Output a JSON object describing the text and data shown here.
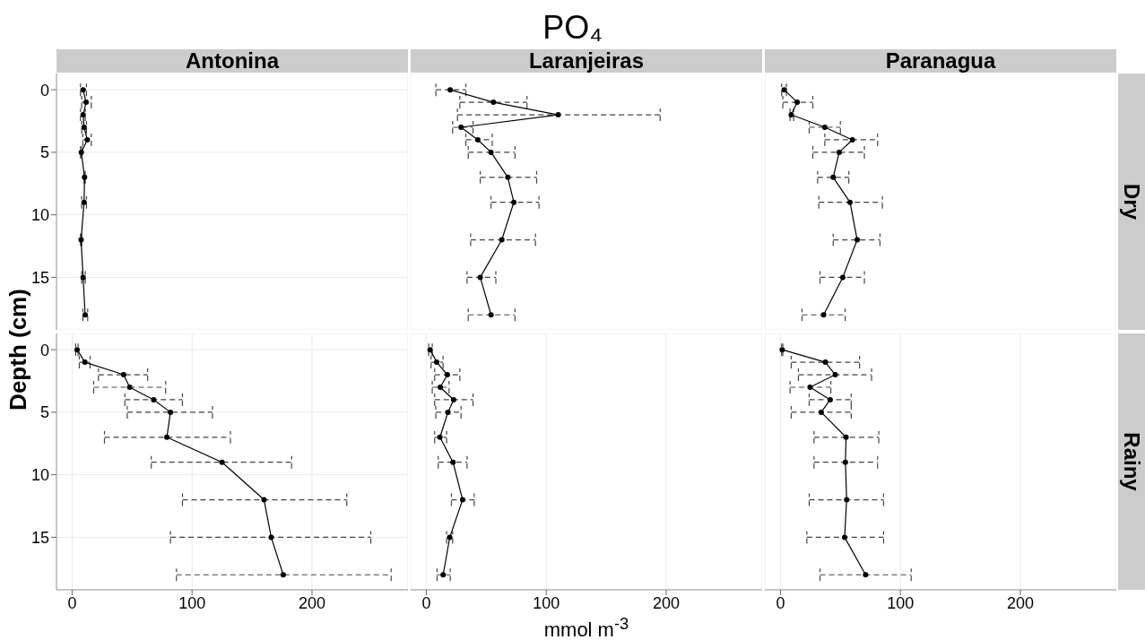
{
  "chart_data": [
    {
      "type": "line",
      "subtitle": "Antonina",
      "ylabel": "Depth (cm)",
      "series": [
        {
          "color": "#000000",
          "x": [
            9.2,
            11.7,
            9.2,
            10,
            12.7,
            7.7,
            10.4,
            10,
            7.5,
            9.2,
            10.9
          ],
          "values": [
            0,
            1,
            2,
            3,
            4,
            5,
            7,
            9,
            12,
            15,
            18
          ],
          "xerrors": [
            [
              7,
              12
            ],
            [
              8,
              16
            ],
            [
              7,
              11
            ],
            [
              8,
              12
            ],
            [
              9,
              16
            ],
            [
              7,
              8
            ],
            [
              10,
              11
            ],
            [
              8,
              12
            ],
            [
              7,
              8
            ],
            [
              8,
              11
            ],
            [
              9,
              13
            ]
          ]
        }
      ],
      "xlim": [
        -13,
        280
      ],
      "xticks": [
        0,
        100,
        200
      ],
      "ylim": [
        19.2,
        -1.3
      ],
      "yticks": [
        0,
        5,
        10,
        15
      ],
      "grid": true,
      "marker": "circle",
      "line_style": "solid",
      "tick_labels": "y"
    },
    {
      "type": "line",
      "title": "PO₄",
      "subtitle": "Laranjeiras",
      "series": [
        {
          "color": "#000000",
          "x": [
            20,
            56,
            110,
            29,
            43,
            54,
            68,
            73,
            63,
            45,
            54
          ],
          "values": [
            0,
            1,
            2,
            3,
            4,
            5,
            7,
            9,
            12,
            15,
            18
          ],
          "xerrors": [
            [
              8,
              33
            ],
            [
              28,
              84
            ],
            [
              26,
              195
            ],
            [
              22,
              39
            ],
            [
              33,
              55
            ],
            [
              35,
              74
            ],
            [
              45,
              92
            ],
            [
              54,
              94
            ],
            [
              37,
              91
            ],
            [
              34,
              58
            ],
            [
              35,
              74
            ]
          ]
        }
      ],
      "xlim": [
        -13,
        280
      ],
      "xticks": [
        0,
        100,
        200
      ],
      "ylim": [
        19.2,
        -1.3
      ],
      "yticks": [
        0,
        5,
        10,
        15
      ],
      "grid": true,
      "marker": "circle",
      "line_style": "solid",
      "tick_labels": false
    },
    {
      "type": "line",
      "subtitle": "Paranagua",
      "annotations": [
        "Dry"
      ],
      "series": [
        {
          "color": "#000000",
          "x": [
            3.2,
            14,
            9,
            37,
            60,
            49,
            44,
            58,
            64,
            52,
            36
          ],
          "values": [
            0,
            1,
            2,
            3,
            4,
            5,
            7,
            9,
            12,
            15,
            18
          ],
          "xerrors": [
            [
              1,
              5
            ],
            [
              2,
              27
            ],
            [
              8,
              11
            ],
            [
              24,
              50
            ],
            [
              37,
              81
            ],
            [
              27,
              70
            ],
            [
              31,
              57
            ],
            [
              32,
              85
            ],
            [
              44,
              83
            ],
            [
              33,
              70
            ],
            [
              18,
              54
            ]
          ]
        }
      ],
      "xlim": [
        -13,
        280
      ],
      "xticks": [
        0,
        100,
        200
      ],
      "ylim": [
        19.2,
        -1.3
      ],
      "yticks": [
        0,
        5,
        10,
        15
      ],
      "grid": true,
      "marker": "circle",
      "line_style": "solid",
      "tick_labels": false
    },
    {
      "type": "line",
      "series": [
        {
          "color": "#000000",
          "x": [
            4.2,
            10.7,
            43,
            48,
            68,
            82,
            79,
            125,
            160,
            166,
            176
          ],
          "values": [
            0,
            1,
            2,
            3,
            4,
            5,
            7,
            9,
            12,
            15,
            18
          ],
          "xerrors": [
            [
              3,
              5
            ],
            [
              6,
              15
            ],
            [
              22,
              63
            ],
            [
              18,
              78
            ],
            [
              44,
              92
            ],
            [
              46,
              117
            ],
            [
              27,
              132
            ],
            [
              66,
              183
            ],
            [
              92,
              229
            ],
            [
              82,
              249
            ],
            [
              87,
              266
            ]
          ]
        }
      ],
      "xlim": [
        -13,
        280
      ],
      "xticks": [
        0,
        100,
        200
      ],
      "ylim": [
        19.2,
        -1.3
      ],
      "yticks": [
        0,
        5,
        10,
        15
      ],
      "grid": true,
      "marker": "circle",
      "line_style": "solid"
    },
    {
      "type": "line",
      "xlabel": "mmol m$^{-3}$",
      "series": [
        {
          "color": "#000000",
          "x": [
            3.2,
            8.7,
            17.6,
            11.7,
            22.8,
            18.1,
            11.4,
            22.3,
            30.3,
            19.6,
            14.1
          ],
          "values": [
            0,
            1,
            2,
            3,
            4,
            5,
            7,
            9,
            12,
            15,
            18
          ],
          "xerrors": [
            [
              2,
              5
            ],
            [
              4,
              14
            ],
            [
              7,
              28
            ],
            [
              5,
              19
            ],
            [
              7,
              39
            ],
            [
              8,
              29
            ],
            [
              7,
              17
            ],
            [
              10,
              34
            ],
            [
              21,
              40
            ],
            [
              17,
              22
            ],
            [
              9,
              20
            ]
          ]
        }
      ],
      "xlim": [
        -13,
        280
      ],
      "xticks": [
        0,
        100,
        200
      ],
      "ylim": [
        19.2,
        -1.3
      ],
      "yticks": [
        0,
        5,
        10,
        15
      ],
      "grid": true,
      "marker": "circle",
      "line_style": "solid",
      "tick_labels": "x"
    },
    {
      "type": "line",
      "annotations": [
        "Rainy"
      ],
      "series": [
        {
          "color": "#000000",
          "x": [
            1.5,
            37.5,
            45.7,
            24.7,
            41.5,
            34,
            54.7,
            54.2,
            55.2,
            53.5,
            71
          ],
          "values": [
            0,
            1,
            2,
            3,
            4,
            5,
            7,
            9,
            12,
            15,
            18
          ],
          "xerrors": [
            [
              1,
              2
            ],
            [
              9,
              66
            ],
            [
              15,
              76
            ],
            [
              8,
              42
            ],
            [
              24,
              59
            ],
            [
              9,
              59
            ],
            [
              28,
              82
            ],
            [
              28,
              81
            ],
            [
              24,
              86
            ],
            [
              22,
              86
            ],
            [
              33,
              109
            ]
          ]
        }
      ],
      "xlim": [
        -13,
        280
      ],
      "xticks": [
        0,
        100,
        200
      ],
      "ylim": [
        19.2,
        -1.3
      ],
      "yticks": [
        0,
        5,
        10,
        15
      ],
      "grid": true,
      "marker": "circle",
      "line_style": "solid",
      "tick_labels": "x"
    }
  ]
}
